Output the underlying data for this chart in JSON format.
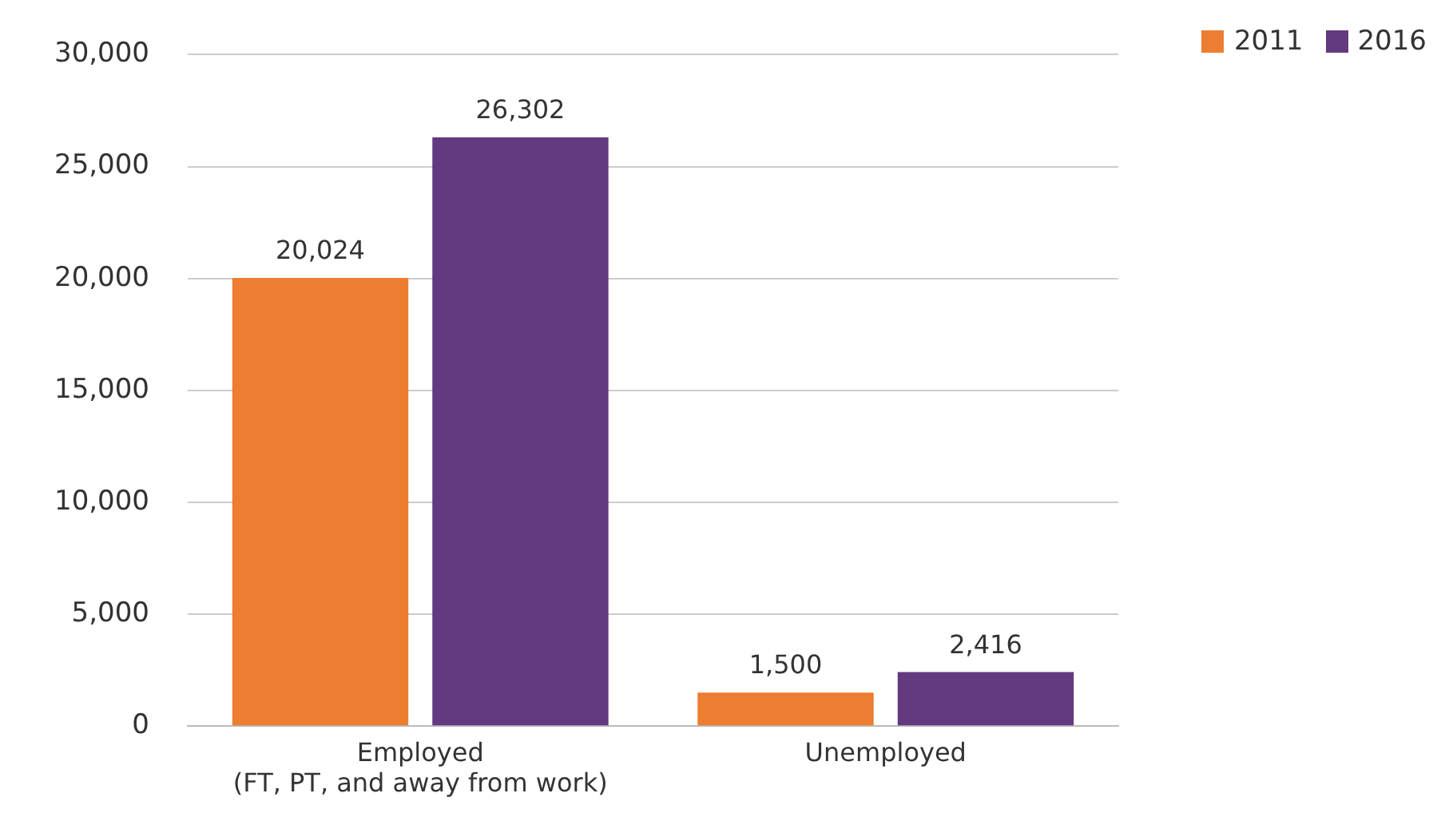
{
  "chart_data": {
    "type": "bar",
    "categories": [
      "Employed\n(FT, PT, and away from work)",
      "Unemployed"
    ],
    "series": [
      {
        "name": "2011",
        "color": "#ed7d31",
        "values": [
          20024,
          1500
        ],
        "value_labels": [
          "20,024",
          "1,500"
        ]
      },
      {
        "name": "2016",
        "color": "#633a80",
        "values": [
          26302,
          2416
        ],
        "value_labels": [
          "26,302",
          "2,416"
        ]
      }
    ],
    "ylim": [
      0,
      30000
    ],
    "yticks": [
      0,
      {
        "value": 5000,
        "label": "5,000"
      },
      {
        "value": 10000,
        "label": "10,000"
      },
      {
        "value": 15000,
        "label": "15,000"
      },
      {
        "value": 20000,
        "label": "20,000"
      },
      {
        "value": 25000,
        "label": "25,000"
      },
      {
        "value": 30000,
        "label": "30,000"
      }
    ],
    "grid": "y",
    "legend": "top right"
  }
}
